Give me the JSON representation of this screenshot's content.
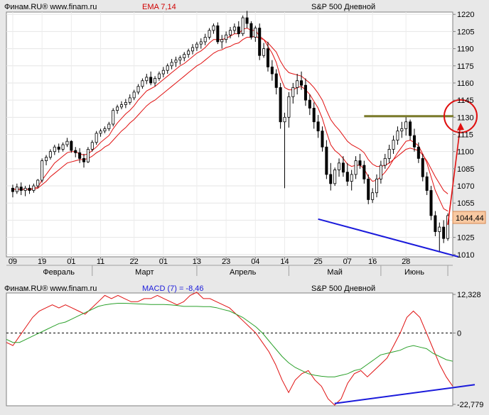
{
  "chart_data": [
    {
      "type": "candlestick",
      "header": {
        "source": "Финам.RU®  www.finam.ru",
        "indicator": "EMA 7,14",
        "title": "S&P 500 Дневной"
      },
      "ylim": [
        1008,
        1222
      ],
      "yticks": [
        1010,
        1025,
        1040,
        1055,
        1070,
        1085,
        1100,
        1115,
        1130,
        1145,
        1160,
        1175,
        1190,
        1205,
        1220
      ],
      "xtick_days": [
        "09",
        "19",
        "01",
        "11",
        "22",
        "01",
        "13",
        "23",
        "04",
        "14",
        "25",
        "07",
        "16",
        "28"
      ],
      "months": [
        "Февраль",
        "Март",
        "Апрель",
        "Май",
        "Июнь"
      ],
      "last_price": "1044,44",
      "colors": {
        "ema": "#e01010",
        "up": "#ffffff",
        "down": "#000000",
        "level": "#7a7a2a",
        "trend": "#1a1adb",
        "marker": "#e01010"
      },
      "ohlc": [
        [
          1068,
          1071,
          1060,
          1065
        ],
        [
          1065,
          1072,
          1063,
          1069
        ],
        [
          1069,
          1073,
          1062,
          1066
        ],
        [
          1066,
          1070,
          1061,
          1068
        ],
        [
          1068,
          1071,
          1063,
          1066
        ],
        [
          1066,
          1072,
          1064,
          1070
        ],
        [
          1070,
          1076,
          1068,
          1075
        ],
        [
          1075,
          1094,
          1073,
          1092
        ],
        [
          1092,
          1097,
          1088,
          1095
        ],
        [
          1095,
          1102,
          1093,
          1100
        ],
        [
          1100,
          1106,
          1097,
          1104
        ],
        [
          1104,
          1107,
          1099,
          1102
        ],
        [
          1102,
          1108,
          1100,
          1106
        ],
        [
          1106,
          1112,
          1104,
          1109
        ],
        [
          1109,
          1110,
          1099,
          1101
        ],
        [
          1101,
          1104,
          1095,
          1099
        ],
        [
          1099,
          1103,
          1090,
          1094
        ],
        [
          1094,
          1098,
          1086,
          1091
        ],
        [
          1091,
          1104,
          1090,
          1102
        ],
        [
          1102,
          1110,
          1100,
          1108
        ],
        [
          1108,
          1118,
          1106,
          1116
        ],
        [
          1116,
          1120,
          1113,
          1118
        ],
        [
          1118,
          1122,
          1116,
          1120
        ],
        [
          1120,
          1126,
          1118,
          1124
        ],
        [
          1124,
          1138,
          1122,
          1136
        ],
        [
          1136,
          1141,
          1133,
          1139
        ],
        [
          1139,
          1144,
          1137,
          1141
        ],
        [
          1141,
          1146,
          1138,
          1143
        ],
        [
          1143,
          1150,
          1141,
          1147
        ],
        [
          1147,
          1154,
          1145,
          1152
        ],
        [
          1152,
          1159,
          1150,
          1157
        ],
        [
          1157,
          1164,
          1155,
          1162
        ],
        [
          1162,
          1168,
          1159,
          1165
        ],
        [
          1165,
          1170,
          1158,
          1160
        ],
        [
          1160,
          1166,
          1157,
          1164
        ],
        [
          1164,
          1170,
          1162,
          1168
        ],
        [
          1168,
          1174,
          1165,
          1171
        ],
        [
          1171,
          1177,
          1168,
          1175
        ],
        [
          1175,
          1181,
          1172,
          1178
        ],
        [
          1178,
          1183,
          1174,
          1180
        ],
        [
          1180,
          1184,
          1176,
          1182
        ],
        [
          1182,
          1187,
          1179,
          1185
        ],
        [
          1185,
          1190,
          1182,
          1188
        ],
        [
          1188,
          1194,
          1185,
          1191
        ],
        [
          1191,
          1196,
          1188,
          1194
        ],
        [
          1194,
          1199,
          1190,
          1196
        ],
        [
          1196,
          1203,
          1193,
          1200
        ],
        [
          1200,
          1208,
          1198,
          1206
        ],
        [
          1206,
          1212,
          1203,
          1210
        ],
        [
          1210,
          1213,
          1194,
          1196
        ],
        [
          1196,
          1202,
          1190,
          1198
        ],
        [
          1198,
          1205,
          1195,
          1202
        ],
        [
          1202,
          1209,
          1199,
          1206
        ],
        [
          1206,
          1212,
          1203,
          1209
        ],
        [
          1209,
          1214,
          1200,
          1203
        ],
        [
          1203,
          1219,
          1201,
          1217
        ],
        [
          1217,
          1223,
          1208,
          1212
        ],
        [
          1212,
          1214,
          1198,
          1200
        ],
        [
          1200,
          1210,
          1196,
          1208
        ],
        [
          1208,
          1212,
          1180,
          1184
        ],
        [
          1184,
          1195,
          1182,
          1190
        ],
        [
          1190,
          1196,
          1170,
          1174
        ],
        [
          1174,
          1180,
          1162,
          1168
        ],
        [
          1168,
          1172,
          1150,
          1156
        ],
        [
          1156,
          1160,
          1120,
          1126
        ],
        [
          1126,
          1134,
          1068,
          1130
        ],
        [
          1130,
          1152,
          1121,
          1148
        ],
        [
          1148,
          1160,
          1142,
          1156
        ],
        [
          1156,
          1168,
          1150,
          1162
        ],
        [
          1162,
          1170,
          1154,
          1158
        ],
        [
          1158,
          1164,
          1140,
          1145
        ],
        [
          1145,
          1150,
          1132,
          1138
        ],
        [
          1138,
          1143,
          1120,
          1126
        ],
        [
          1126,
          1132,
          1112,
          1118
        ],
        [
          1118,
          1122,
          1100,
          1104
        ],
        [
          1104,
          1110,
          1076,
          1080
        ],
        [
          1080,
          1090,
          1066,
          1072
        ],
        [
          1072,
          1086,
          1070,
          1084
        ],
        [
          1084,
          1094,
          1078,
          1090
        ],
        [
          1090,
          1096,
          1078,
          1082
        ],
        [
          1082,
          1090,
          1070,
          1074
        ],
        [
          1074,
          1084,
          1066,
          1080
        ],
        [
          1080,
          1096,
          1076,
          1092
        ],
        [
          1092,
          1098,
          1085,
          1088
        ],
        [
          1088,
          1092,
          1072,
          1076
        ],
        [
          1076,
          1080,
          1054,
          1058
        ],
        [
          1058,
          1068,
          1055,
          1064
        ],
        [
          1064,
          1080,
          1060,
          1076
        ],
        [
          1076,
          1092,
          1072,
          1088
        ],
        [
          1088,
          1098,
          1085,
          1094
        ],
        [
          1094,
          1106,
          1090,
          1102
        ],
        [
          1102,
          1114,
          1098,
          1110
        ],
        [
          1110,
          1122,
          1106,
          1118
        ],
        [
          1118,
          1126,
          1112,
          1120
        ],
        [
          1120,
          1131,
          1114,
          1126
        ],
        [
          1126,
          1128,
          1110,
          1114
        ],
        [
          1114,
          1120,
          1100,
          1104
        ],
        [
          1104,
          1108,
          1090,
          1094
        ],
        [
          1094,
          1098,
          1074,
          1078
        ],
        [
          1078,
          1082,
          1062,
          1066
        ],
        [
          1066,
          1070,
          1040,
          1044
        ],
        [
          1044,
          1048,
          1026,
          1030
        ],
        [
          1030,
          1038,
          1012,
          1034
        ],
        [
          1034,
          1040,
          1020,
          1024
        ],
        [
          1024,
          1046,
          1022,
          1044
        ]
      ],
      "ema7": [
        1067,
        1067,
        1067,
        1067,
        1067,
        1068,
        1069,
        1075,
        1080,
        1085,
        1090,
        1093,
        1096,
        1099,
        1100,
        1100,
        1098,
        1097,
        1098,
        1101,
        1104,
        1108,
        1111,
        1114,
        1120,
        1125,
        1129,
        1133,
        1136,
        1140,
        1145,
        1149,
        1153,
        1155,
        1157,
        1160,
        1163,
        1166,
        1169,
        1172,
        1175,
        1177,
        1180,
        1183,
        1186,
        1188,
        1191,
        1195,
        1198,
        1198,
        1198,
        1199,
        1201,
        1203,
        1203,
        1207,
        1208,
        1206,
        1206,
        1201,
        1198,
        1192,
        1186,
        1178,
        1165,
        1156,
        1154,
        1154,
        1156,
        1157,
        1154,
        1150,
        1144,
        1138,
        1129,
        1117,
        1106,
        1101,
        1098,
        1094,
        1089,
        1087,
        1088,
        1088,
        1085,
        1078,
        1074,
        1075,
        1078,
        1082,
        1087,
        1093,
        1099,
        1104,
        1109,
        1110,
        1108,
        1105,
        1098,
        1090,
        1078,
        1066,
        1058,
        1050,
        1048
      ],
      "ema14": [
        1067,
        1067,
        1067,
        1067,
        1067,
        1067,
        1068,
        1071,
        1074,
        1078,
        1081,
        1084,
        1087,
        1090,
        1091,
        1092,
        1093,
        1093,
        1094,
        1096,
        1099,
        1101,
        1104,
        1106,
        1110,
        1114,
        1118,
        1121,
        1125,
        1128,
        1132,
        1136,
        1140,
        1143,
        1145,
        1148,
        1151,
        1154,
        1157,
        1160,
        1163,
        1166,
        1169,
        1172,
        1175,
        1177,
        1180,
        1183,
        1186,
        1188,
        1189,
        1191,
        1192,
        1194,
        1195,
        1198,
        1200,
        1200,
        1201,
        1199,
        1198,
        1195,
        1191,
        1187,
        1179,
        1173,
        1169,
        1168,
        1167,
        1166,
        1163,
        1160,
        1156,
        1151,
        1145,
        1136,
        1128,
        1123,
        1119,
        1114,
        1109,
        1106,
        1104,
        1102,
        1099,
        1093,
        1089,
        1087,
        1087,
        1088,
        1090,
        1093,
        1096,
        1099,
        1102,
        1103,
        1102,
        1101,
        1097,
        1092,
        1085,
        1078,
        1072,
        1066,
        1063
      ]
    },
    {
      "type": "line",
      "header": {
        "source": "Финам.RU®  www.finam.ru",
        "indicator": "MACD (7) = -8,46",
        "title": "S&P 500 Дневной"
      },
      "ylim": [
        -22.779,
        12.328
      ],
      "ytick_labels": [
        "12,328",
        "0",
        "-22,779"
      ],
      "series": [
        {
          "color": "#e01010",
          "values": [
            -3,
            -4,
            -1,
            2,
            5,
            7,
            8,
            9,
            8,
            9,
            8,
            7,
            6,
            8,
            10,
            12,
            11,
            12,
            11,
            10,
            10,
            11,
            11,
            12,
            11,
            10,
            9,
            10,
            12,
            13,
            11,
            11,
            10,
            9,
            8,
            6,
            4,
            2,
            0,
            -3,
            -6,
            -10,
            -15,
            -19,
            -15,
            -13,
            -12,
            -15,
            -17,
            -21,
            -23,
            -21,
            -16,
            -13,
            -12,
            -14,
            -12,
            -10,
            -8,
            -4,
            0,
            5,
            7,
            5,
            0,
            -5,
            -10,
            -14,
            -17
          ]
        },
        {
          "color": "#2aa02a",
          "values": [
            -2,
            -3,
            -3,
            -2,
            -1,
            0,
            1,
            2,
            3,
            3.5,
            4.5,
            5.5,
            6.5,
            7.5,
            8.5,
            9,
            9.3,
            9.5,
            9.5,
            9.4,
            9.3,
            9.2,
            9.1,
            9.1,
            9.1,
            9,
            8.8,
            8.5,
            8.5,
            8.5,
            8.4,
            8.4,
            8.1,
            7.5,
            7,
            6,
            5,
            3.5,
            2,
            0,
            -2.5,
            -5,
            -7.5,
            -9.5,
            -11,
            -12,
            -13,
            -13.5,
            -13.8,
            -14,
            -14,
            -13.5,
            -13,
            -12,
            -11.5,
            -10,
            -8.5,
            -7,
            -6.5,
            -6,
            -5.5,
            -4.5,
            -4,
            -4.5,
            -5,
            -6.5,
            -7.5,
            -8.5,
            -9
          ]
        }
      ]
    }
  ]
}
